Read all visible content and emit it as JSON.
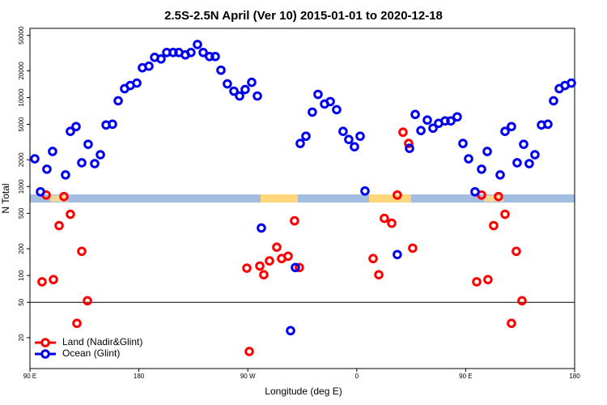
{
  "chart_data": {
    "type": "scatter",
    "title": "2.5S-2.5N April (Ver 10)   2015-01-01 to 2020-12-18",
    "x_label": "Longitude (deg E)",
    "y_label": "N Total",
    "xlim": [
      90,
      540
    ],
    "xticks": [
      {
        "value": 90,
        "label": "90 E"
      },
      180,
      {
        "value": 270,
        "label": "90 W"
      },
      {
        "value": 360,
        "label": "0"
      },
      {
        "value": 450,
        "label": "90 E"
      },
      {
        "value": 540,
        "label": "180"
      }
    ],
    "ylim": [
      9,
      60000
    ],
    "log_y": true,
    "yticks": [
      20,
      50,
      100,
      200,
      500,
      1000,
      2000,
      5000,
      10000,
      20000,
      50000
    ],
    "hline": 50,
    "legend": "bottom-left",
    "series": [
      {
        "name": "Land (Nadir&Glint)",
        "color": "#ff0000",
        "x": [
          100.0,
          103.4,
          109.4,
          114.1,
          118.1,
          123.4,
          128.8,
          132.8,
          137.5,
          269.2,
          271.2,
          279.9,
          283.2,
          287.9,
          293.9,
          297.9,
          303.3,
          308.6,
          312.6,
          373.5,
          378.2,
          382.8,
          388.9,
          393.5,
          398.2,
          402.9,
          406.2,
          459.1,
          463.1,
          468.4,
          473.1,
          477.1,
          482.5,
          487.8,
          491.8,
          496.5
        ],
        "values": [
          85,
          803,
          90,
          364,
          771,
          488,
          29,
          187,
          52,
          121,
          14,
          128,
          102,
          146,
          208,
          155,
          165,
          412,
          123,
          155,
          102,
          439,
          387,
          803,
          4080,
          3050,
          203,
          85,
          803,
          90,
          364,
          771,
          488,
          29,
          187,
          52
        ]
      },
      {
        "name": "Ocean (Glint)",
        "color": "#0000ee",
        "x": [
          94.0,
          98.7,
          104.0,
          108.7,
          119.4,
          123.4,
          128.1,
          132.8,
          138.1,
          143.5,
          148.2,
          152.9,
          158.2,
          162.9,
          168.2,
          172.9,
          178.3,
          182.9,
          188.3,
          193.0,
          198.3,
          203.0,
          208.3,
          213.0,
          218.4,
          223.0,
          228.4,
          233.1,
          238.4,
          243.1,
          247.8,
          253.1,
          258.5,
          263.2,
          267.8,
          273.2,
          277.9,
          281.2,
          305.3,
          309.3,
          313.3,
          318.0,
          323.3,
          328.0,
          333.4,
          338.1,
          343.4,
          348.7,
          353.4,
          358.1,
          362.8,
          366.8,
          393.5,
          403.6,
          408.3,
          413.0,
          418.3,
          423.0,
          427.6,
          433.0,
          437.7,
          443.0,
          447.7,
          452.4,
          457.7,
          463.1,
          467.8,
          478.5,
          482.5,
          487.8,
          492.5,
          497.9,
          502.5,
          507.2,
          512.6,
          517.9,
          522.6,
          527.3,
          532.0,
          537.3
        ],
        "values": [
          2050,
          873,
          1567,
          2480,
          1352,
          4170,
          4720,
          1850,
          2985,
          1810,
          2280,
          4920,
          5020,
          9200,
          12590,
          13680,
          14560,
          21630,
          22550,
          28330,
          27180,
          32120,
          32120,
          32120,
          30200,
          32120,
          39540,
          32120,
          28960,
          28960,
          20320,
          14260,
          11810,
          10420,
          12310,
          14850,
          10420,
          342,
          24,
          123,
          3050,
          3680,
          6870,
          10860,
          8470,
          9020,
          7310,
          4170,
          3380,
          2800,
          3680,
          891,
          172,
          2690,
          6460,
          4260,
          5590,
          4530,
          5130,
          5460,
          5460,
          6070,
          3050,
          2050,
          873,
          1567,
          2480,
          1352,
          4170,
          4720,
          1850,
          2985,
          1810,
          2280,
          4920,
          5020,
          9200,
          12590,
          13680,
          14560
        ]
      }
    ]
  }
}
